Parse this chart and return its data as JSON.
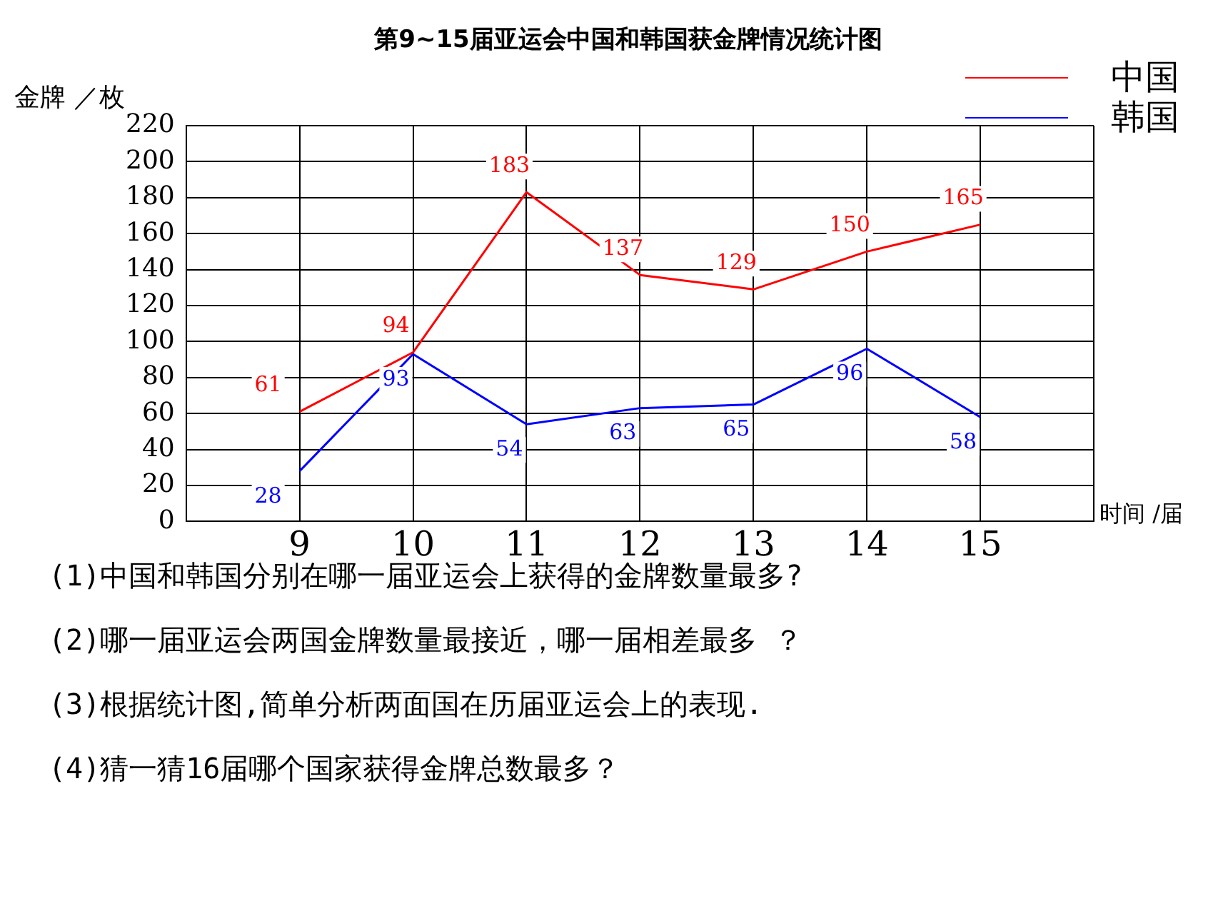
{
  "chart_data": {
    "type": "line",
    "title": "第9~15届亚运会中国和韩国获金牌情况统计图",
    "ylabel": "金牌 ／枚",
    "xlabel": "时间 /届",
    "x": [
      9,
      10,
      11,
      12,
      13,
      14,
      15
    ],
    "xlim": [
      8,
      16
    ],
    "xticks": [
      {
        "value": 8,
        "label": null
      },
      9,
      10,
      11,
      12,
      13,
      14,
      15,
      {
        "value": 16,
        "label": null
      }
    ],
    "ylim": [
      0,
      220
    ],
    "yticks": [
      0,
      20,
      40,
      60,
      80,
      100,
      120,
      140,
      160,
      180,
      200,
      220
    ],
    "series": [
      {
        "name": "中国",
        "color": "#ff0000",
        "values": [
          61,
          94,
          183,
          137,
          129,
          150,
          165
        ]
      },
      {
        "name": "韩国",
        "color": "#0000ff",
        "values": [
          28,
          93,
          54,
          63,
          65,
          96,
          58
        ]
      }
    ],
    "data_labels": true,
    "grid": true,
    "legend": "top right",
    "marker": "none",
    "line_style": "solid",
    "annotations": [
      "(1)中国和韩国分别在哪一届亚运会上获得的金牌数量最多?",
      "(2)哪一届亚运会两国金牌数量最接近，哪一届相差最多 ？",
      "(3)根据统计图,简单分析两面国在历届亚运会上的表现.",
      "(4)猜一猜16届哪个国家获得金牌总数最多？"
    ]
  }
}
